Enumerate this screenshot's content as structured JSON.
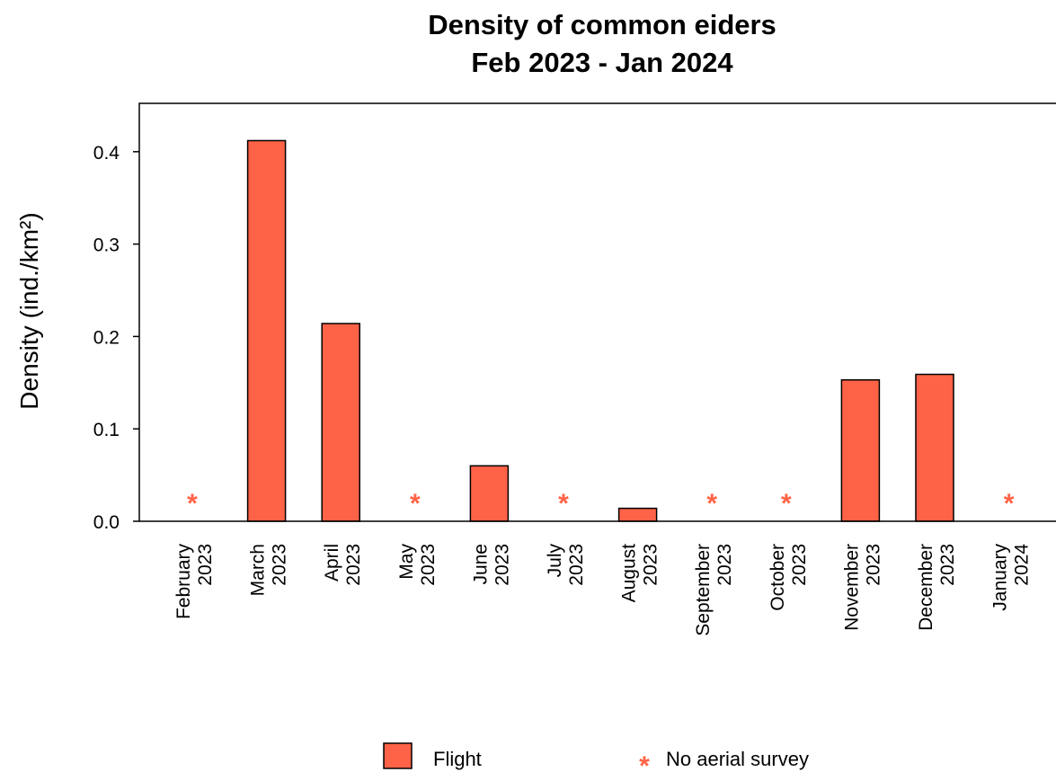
{
  "chart_data": {
    "type": "bar",
    "title_line1": "Density of common eiders",
    "title_line2": "Feb 2023 - Jan 2024",
    "xlabel": "",
    "ylabel": "Density (ind./km²)",
    "ylim": [
      0,
      0.45
    ],
    "yticks": [
      0.0,
      0.1,
      0.2,
      0.3,
      0.4
    ],
    "ytick_labels": [
      "0.0",
      "0.1",
      "0.2",
      "0.3",
      "0.4"
    ],
    "grid": false,
    "categories": [
      {
        "month": "February",
        "year": "2023"
      },
      {
        "month": "March",
        "year": "2023"
      },
      {
        "month": "April",
        "year": "2023"
      },
      {
        "month": "May",
        "year": "2023"
      },
      {
        "month": "June",
        "year": "2023"
      },
      {
        "month": "July",
        "year": "2023"
      },
      {
        "month": "August",
        "year": "2023"
      },
      {
        "month": "September",
        "year": "2023"
      },
      {
        "month": "October",
        "year": "2023"
      },
      {
        "month": "November",
        "year": "2023"
      },
      {
        "month": "December",
        "year": "2023"
      },
      {
        "month": "January",
        "year": "2024"
      }
    ],
    "series": [
      {
        "name": "Flight",
        "color": "#FF6347",
        "values": [
          null,
          0.412,
          0.214,
          null,
          0.06,
          null,
          0.014,
          null,
          null,
          0.153,
          0.159,
          null
        ]
      }
    ],
    "no_survey": {
      "label": "No aerial survey",
      "marker": "*",
      "color": "#FF6347",
      "months": [
        "February",
        "May",
        "July",
        "September",
        "October",
        "January"
      ],
      "flags": [
        true,
        false,
        false,
        true,
        false,
        true,
        false,
        true,
        true,
        false,
        false,
        true
      ]
    },
    "legend": {
      "position": "bottom",
      "entries": [
        {
          "label": "Flight",
          "kind": "box"
        },
        {
          "label": "No aerial survey",
          "kind": "star"
        }
      ]
    }
  }
}
